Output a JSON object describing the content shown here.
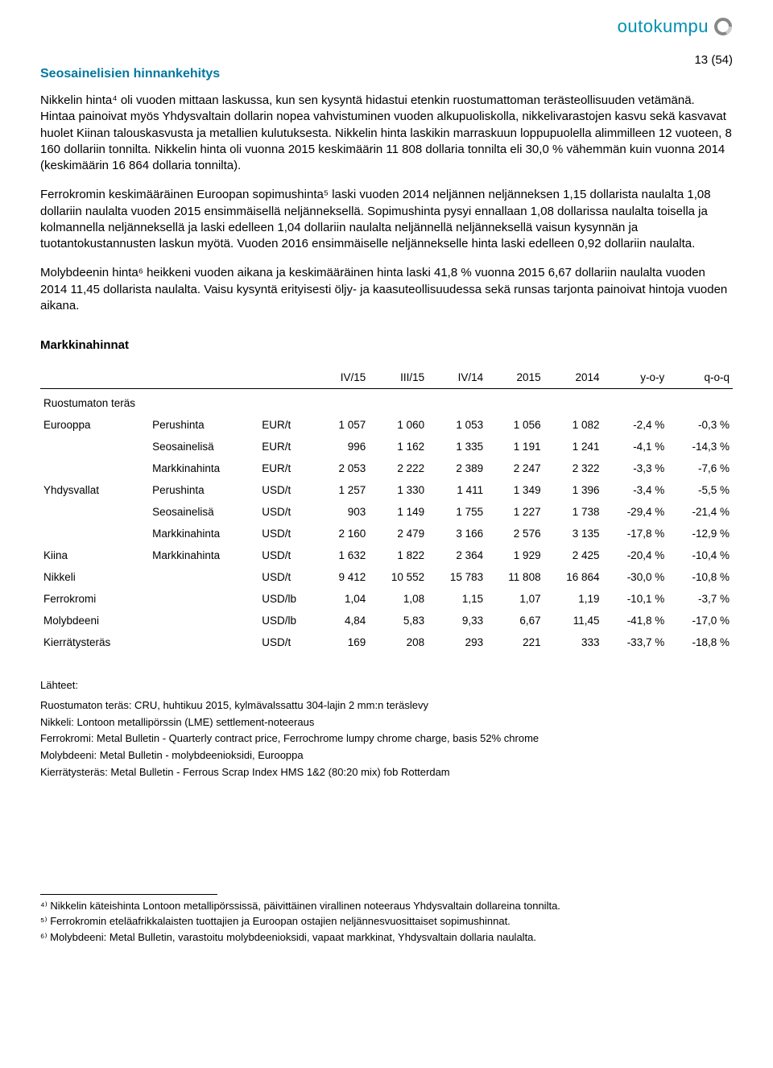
{
  "header": {
    "logo_text": "outokumpu",
    "page_number": "13 (54)"
  },
  "section_title": "Seosainelisien hinnankehitys",
  "paragraphs": [
    "Nikkelin hinta⁴ oli vuoden mittaan laskussa, kun sen kysyntä hidastui etenkin ruostumattoman terästeollisuuden vetämänä. Hintaa painoivat myös Yhdysvaltain dollarin nopea vahvistuminen vuoden alkupuoliskolla, nikkelivarastojen kasvu sekä kasvavat huolet Kiinan talouskasvusta ja metallien kulutuksesta. Nikkelin hinta laskikin marraskuun loppupuolella alimmilleen 12 vuoteen, 8 160 dollariin tonnilta. Nikkelin hinta oli vuonna 2015 keskimäärin 11 808 dollaria tonnilta eli 30,0 % vähemmän kuin vuonna 2014 (keskimäärin 16 864 dollaria tonnilta).",
    "Ferrokromin keskimääräinen Euroopan sopimushinta⁵ laski vuoden 2014 neljännen neljänneksen 1,15 dollarista naulalta 1,08 dollariin naulalta vuoden 2015 ensimmäisellä neljänneksellä. Sopimushinta pysyi ennallaan 1,08 dollarissa naulalta toisella ja kolmannella neljänneksellä ja laski edelleen 1,04 dollariin naulalta neljännellä neljänneksellä vaisun kysynnän ja tuotantokustannusten laskun myötä. Vuoden 2016 ensimmäiselle neljännekselle hinta laski edelleen 0,92 dollariin naulalta.",
    "Molybdeenin hinta⁶ heikkeni vuoden aikana ja keskimääräinen hinta laski 41,8 % vuonna 2015 6,67 dollariin naulalta vuoden 2014 11,45 dollarista naulalta. Vaisu kysyntä erityisesti öljy- ja kaasuteollisuudessa sekä runsas tarjonta painoivat hintoja vuoden aikana."
  ],
  "table": {
    "title": "Markkinahinnat",
    "columns": [
      "",
      "",
      "",
      "IV/15",
      "III/15",
      "IV/14",
      "2015",
      "2014",
      "y-o-y",
      "q-o-q"
    ],
    "section_header": "Ruostumaton teräs",
    "rows": [
      {
        "c": [
          "Eurooppa",
          "Perushinta",
          "EUR/t",
          "1 057",
          "1 060",
          "1 053",
          "1 056",
          "1 082",
          "-2,4 %",
          "-0,3 %"
        ]
      },
      {
        "c": [
          "",
          "Seosainelisä",
          "EUR/t",
          "996",
          "1 162",
          "1 335",
          "1 191",
          "1 241",
          "-4,1 %",
          "-14,3 %"
        ]
      },
      {
        "c": [
          "",
          "Markkinahinta",
          "EUR/t",
          "2 053",
          "2 222",
          "2 389",
          "2 247",
          "2 322",
          "-3,3 %",
          "-7,6 %"
        ]
      },
      {
        "c": [
          "Yhdysvallat",
          "Perushinta",
          "USD/t",
          "1 257",
          "1 330",
          "1 411",
          "1 349",
          "1 396",
          "-3,4 %",
          "-5,5 %"
        ]
      },
      {
        "c": [
          "",
          "Seosainelisä",
          "USD/t",
          "903",
          "1 149",
          "1 755",
          "1 227",
          "1 738",
          "-29,4 %",
          "-21,4 %"
        ]
      },
      {
        "c": [
          "",
          "Markkinahinta",
          "USD/t",
          "2 160",
          "2 479",
          "3 166",
          "2 576",
          "3 135",
          "-17,8 %",
          "-12,9 %"
        ]
      },
      {
        "c": [
          "Kiina",
          "Markkinahinta",
          "USD/t",
          "1 632",
          "1 822",
          "2 364",
          "1 929",
          "2 425",
          "-20,4 %",
          "-10,4 %"
        ]
      },
      {
        "c": [
          "Nikkeli",
          "",
          "USD/t",
          "9 412",
          "10 552",
          "15 783",
          "11 808",
          "16 864",
          "-30,0 %",
          "-10,8 %"
        ]
      },
      {
        "c": [
          "Ferrokromi",
          "",
          "USD/lb",
          "1,04",
          "1,08",
          "1,15",
          "1,07",
          "1,19",
          "-10,1 %",
          "-3,7 %"
        ]
      },
      {
        "c": [
          "Molybdeeni",
          "",
          "USD/lb",
          "4,84",
          "5,83",
          "9,33",
          "6,67",
          "11,45",
          "-41,8 %",
          "-17,0 %"
        ]
      },
      {
        "c": [
          "Kierrätysteräs",
          "",
          "USD/t",
          "169",
          "208",
          "293",
          "221",
          "333",
          "-33,7 %",
          "-18,8 %"
        ]
      }
    ]
  },
  "sources": {
    "head": "Lähteet:",
    "lines": [
      "Ruostumaton teräs: CRU, huhtikuu 2015, kylmävalssattu 304-lajin 2 mm:n teräslevy",
      "Nikkeli: Lontoon metallipörssin (LME) settlement-noteeraus",
      "Ferrokromi: Metal Bulletin - Quarterly contract price, Ferrochrome lumpy chrome charge, basis 52% chrome",
      "Molybdeeni: Metal Bulletin - molybdeenioksidi, Eurooppa",
      "Kierrätysteräs: Metal Bulletin - Ferrous Scrap Index HMS 1&2 (80:20 mix) fob Rotterdam"
    ]
  },
  "footnotes": [
    "⁴⁾ Nikkelin käteishinta Lontoon metallipörssissä, päivittäinen virallinen noteeraus Yhdysvaltain dollareina tonnilta.",
    "⁵⁾ Ferrokromin eteläafrikkalaisten tuottajien ja Euroopan ostajien neljännesvuosittaiset sopimushinnat.",
    "⁶⁾ Molybdeeni: Metal Bulletin, varastoitu molybdeenioksidi, vapaat markkinat, Yhdysvaltain dollaria naulalta."
  ]
}
